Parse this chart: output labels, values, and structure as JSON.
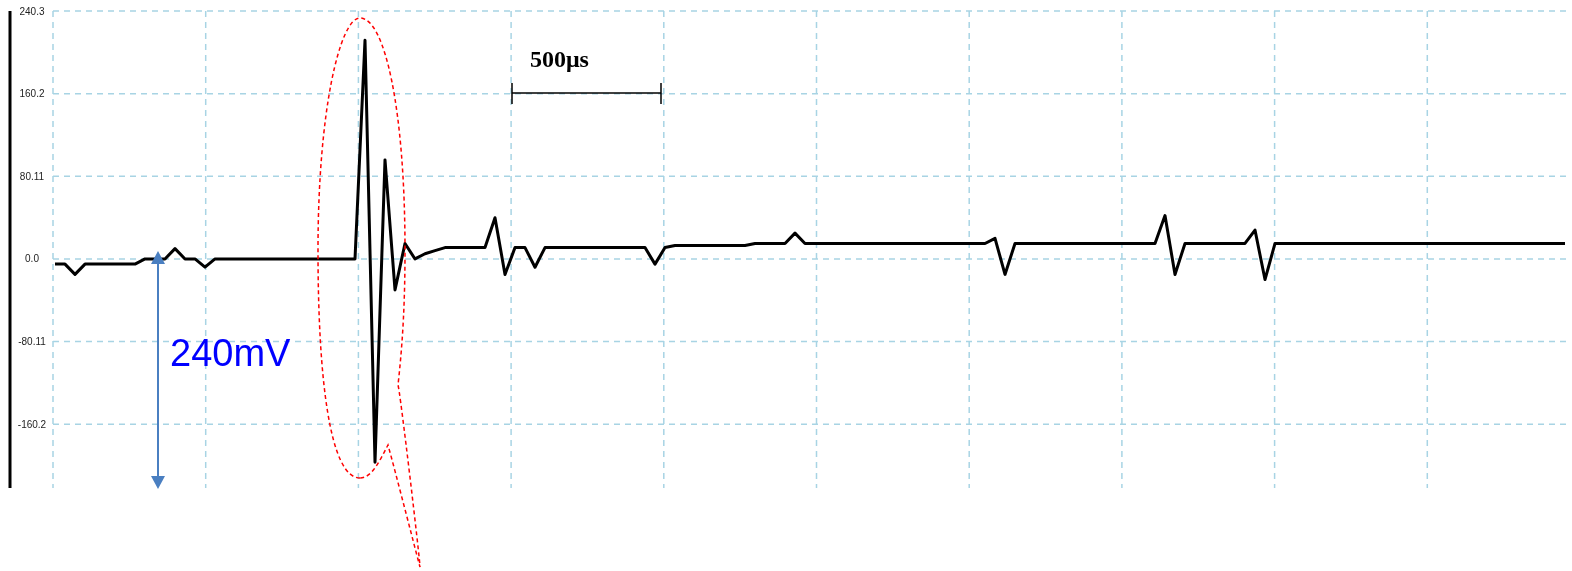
{
  "chart_data": {
    "type": "line",
    "categories": [
      null,
      null,
      null,
      null,
      null,
      null,
      null,
      null,
      null,
      null,
      null,
      null,
      null,
      null,
      null,
      null,
      null,
      null,
      null,
      null,
      null,
      null,
      null,
      null,
      null,
      null,
      null,
      null,
      null,
      null,
      null,
      null,
      null,
      null,
      null,
      null,
      null,
      null,
      null,
      null,
      null,
      null,
      null,
      null,
      null,
      null,
      null,
      null,
      null,
      null,
      null,
      null,
      null,
      null,
      null,
      null,
      null,
      null,
      null,
      null,
      null,
      null,
      null,
      null,
      null,
      null,
      null,
      null,
      null,
      null,
      null,
      null,
      null,
      null,
      null,
      null,
      null,
      null,
      null,
      null,
      null,
      null,
      null,
      null,
      null,
      null,
      null,
      null,
      null,
      null,
      null,
      null,
      null,
      null,
      null,
      null,
      null,
      null,
      null,
      null,
      null,
      null,
      null,
      null,
      null,
      null,
      null,
      null,
      null,
      null,
      null,
      null,
      null,
      null,
      null,
      null,
      null,
      null,
      null,
      null,
      null,
      null,
      null,
      null,
      null,
      null,
      null,
      null,
      null,
      null,
      null,
      null,
      null,
      null,
      null,
      null,
      null,
      null,
      null,
      null,
      null,
      null,
      null,
      null,
      null,
      null,
      null,
      null,
      null,
      null,
      null,
      null
    ],
    "series": [
      {
        "color": "#000000",
        "values": [
          -5,
          -5,
          -15,
          -5,
          -5,
          -5,
          -5,
          -5,
          -5,
          0,
          0,
          0,
          10,
          0,
          0,
          -8,
          0,
          0,
          0,
          0,
          0,
          0,
          0,
          0,
          0,
          0,
          0,
          0,
          0,
          0,
          0,
          212,
          -197,
          96,
          -30,
          15,
          0,
          5,
          8,
          11,
          11,
          11,
          11,
          11,
          40,
          -15,
          11,
          11,
          -8,
          11,
          11,
          11,
          11,
          11,
          11,
          11,
          11,
          11,
          11,
          11,
          -5,
          11,
          13,
          13,
          13,
          13,
          13,
          13,
          13,
          13,
          15,
          15,
          15,
          15,
          25,
          15,
          15,
          15,
          15,
          15,
          15,
          15,
          15,
          15,
          15,
          15,
          15,
          15,
          15,
          15,
          15,
          15,
          15,
          15,
          20,
          -15,
          15,
          15,
          15,
          15,
          15,
          15,
          15,
          15,
          15,
          15,
          15,
          15,
          15,
          15,
          15,
          42,
          -15,
          15,
          15,
          15,
          15,
          15,
          15,
          15,
          28,
          -20,
          15,
          15,
          15,
          15,
          15,
          15,
          15,
          15,
          15,
          15,
          15,
          15,
          15,
          15,
          15,
          15,
          15,
          15,
          15,
          15,
          15,
          15,
          15,
          15,
          15,
          15,
          15,
          15,
          15,
          15
        ]
      }
    ],
    "ylim": [
      -222,
      240.3
    ],
    "yticks": [
      240.3,
      160.2,
      80.11,
      {
        "value": 0,
        "label": "0.0"
      },
      -80.11,
      -160.2
    ],
    "grid": true,
    "marker": "none",
    "line_style": "solid",
    "annotations": [
      "500μs",
      "240mV"
    ]
  }
}
